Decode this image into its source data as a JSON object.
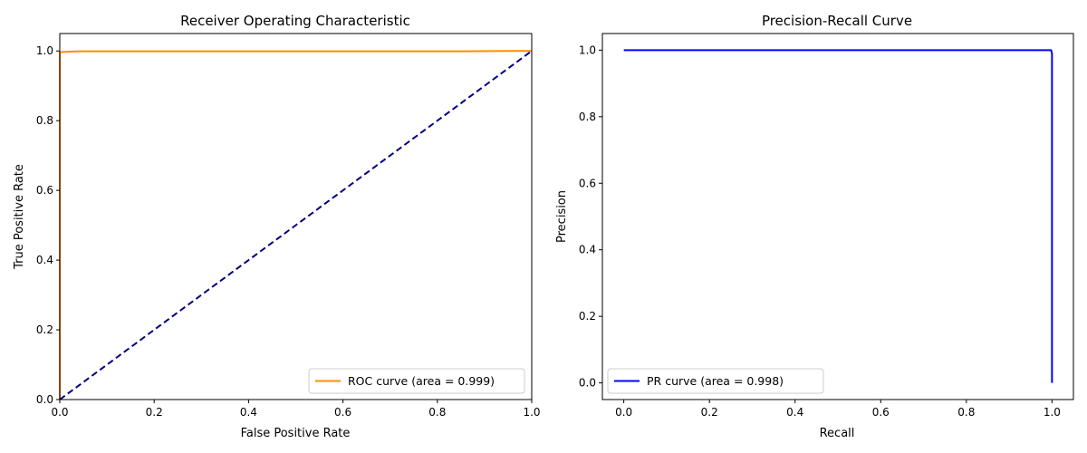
{
  "chart_data": [
    {
      "type": "line",
      "title": "Receiver Operating Characteristic",
      "xlabel": "False Positive Rate",
      "ylabel": "True Positive Rate",
      "xlim": [
        0.0,
        1.0
      ],
      "ylim": [
        0.0,
        1.05
      ],
      "xticks": [
        "0.0",
        "0.2",
        "0.4",
        "0.6",
        "0.8",
        "1.0"
      ],
      "yticks": [
        "0.0",
        "0.2",
        "0.4",
        "0.6",
        "0.8",
        "1.0"
      ],
      "grid": false,
      "legend_position": "lower-right",
      "series": [
        {
          "name": "ROC curve (area = 0.999)",
          "color": "#ff8c00",
          "style": "solid",
          "x": [
            0.0,
            0.0,
            0.003,
            0.04,
            0.3,
            0.6,
            0.85,
            0.95,
            1.0
          ],
          "y": [
            0.0,
            0.996,
            0.997,
            0.999,
            0.999,
            0.999,
            0.999,
            1.0,
            1.0
          ]
        },
        {
          "name": "",
          "color": "#000080",
          "style": "dashed",
          "x": [
            0.0,
            1.0
          ],
          "y": [
            0.0,
            1.0
          ]
        }
      ]
    },
    {
      "type": "line",
      "title": "Precision-Recall Curve",
      "xlabel": "Recall",
      "ylabel": "Precision",
      "xlim": [
        -0.05,
        1.05
      ],
      "ylim": [
        -0.05,
        1.05
      ],
      "xticks": [
        "0.0",
        "0.2",
        "0.4",
        "0.6",
        "0.8",
        "1.0"
      ],
      "yticks": [
        "0.0",
        "0.2",
        "0.4",
        "0.6",
        "0.8",
        "1.0"
      ],
      "grid": false,
      "legend_position": "lower-left",
      "series": [
        {
          "name": "PR curve (area = 0.998)",
          "color": "#0000ff",
          "style": "solid",
          "x": [
            0.0,
            0.5,
            0.98,
            0.998,
            1.0,
            1.0
          ],
          "y": [
            1.0,
            1.0,
            1.0,
            1.0,
            0.99,
            0.0
          ]
        }
      ]
    }
  ]
}
